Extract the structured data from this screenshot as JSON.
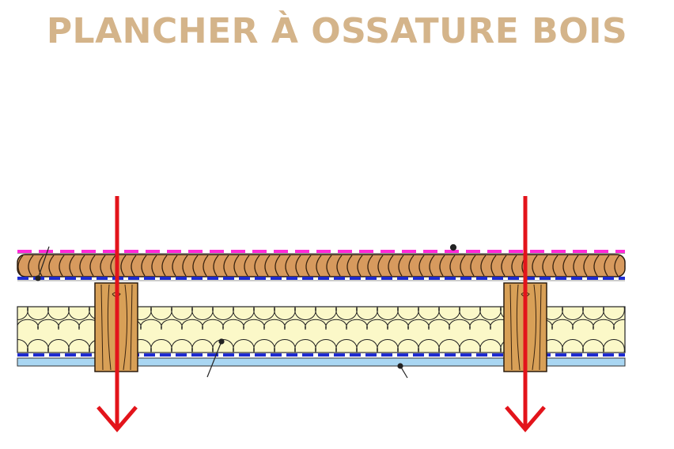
{
  "title": "PLANCHER À OSSATURE BOIS",
  "colors": {
    "title": "#d4b48a",
    "arrow": "#e3141b",
    "membrane": "#ff29d8",
    "vapor_barrier": "#1e2bd0",
    "boards": "#d79a5e",
    "insulation": "#fbf8c8",
    "ceiling": "#a9d6f2",
    "joist": "#d8a057"
  },
  "diagram": {
    "layers_top_to_bottom": [
      "membrane",
      "boards",
      "vapor_barrier",
      "insulation",
      "vapor_barrier",
      "ceiling"
    ],
    "joist_count": 2,
    "arrow_count": 2,
    "arrow_direction": "down"
  }
}
